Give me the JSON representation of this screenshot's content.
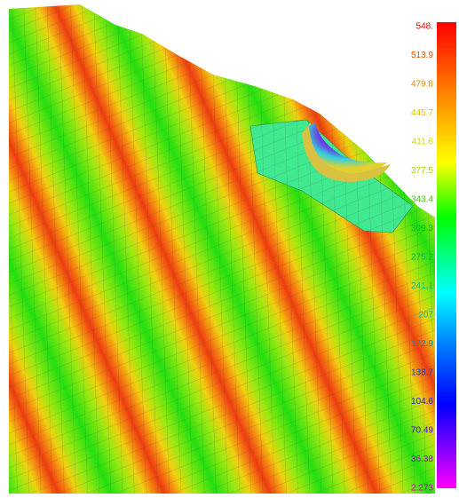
{
  "legend": {
    "labels": [
      "548.",
      "513.9",
      "479.8",
      "445.7",
      "411.6",
      "377.5",
      "343.4",
      "309.3",
      "275.2",
      "241.1",
      "207",
      "172.9",
      "138.7",
      "104.6",
      "70.49",
      "36.38",
      "2.273"
    ]
  }
}
